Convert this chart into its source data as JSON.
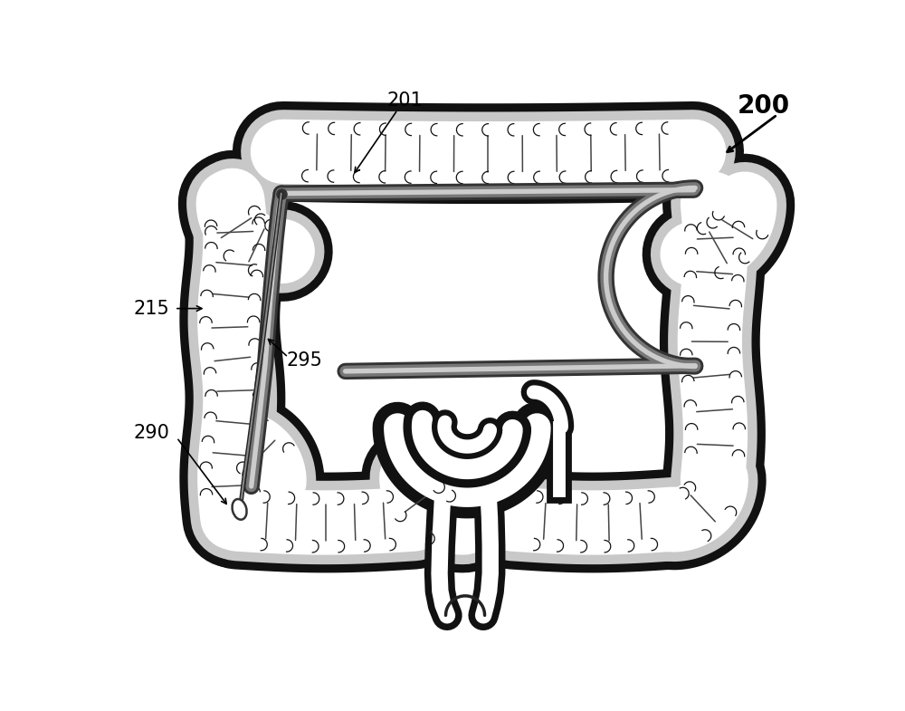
{
  "bg_color": "#ffffff",
  "fig_width": 10.0,
  "fig_height": 7.85,
  "label_201": "201",
  "label_200": "200",
  "label_215": "215",
  "label_295": "295",
  "label_290": "290",
  "colon_outer_color": "#1a1a1a",
  "colon_wall_color": "#cccccc",
  "colon_lumen_color": "#ffffff",
  "colon_fold_color": "#555555",
  "scope_outer_color": "#444444",
  "scope_mid_color": "#888888",
  "scope_inner_color": "#cccccc",
  "r_col": 38
}
